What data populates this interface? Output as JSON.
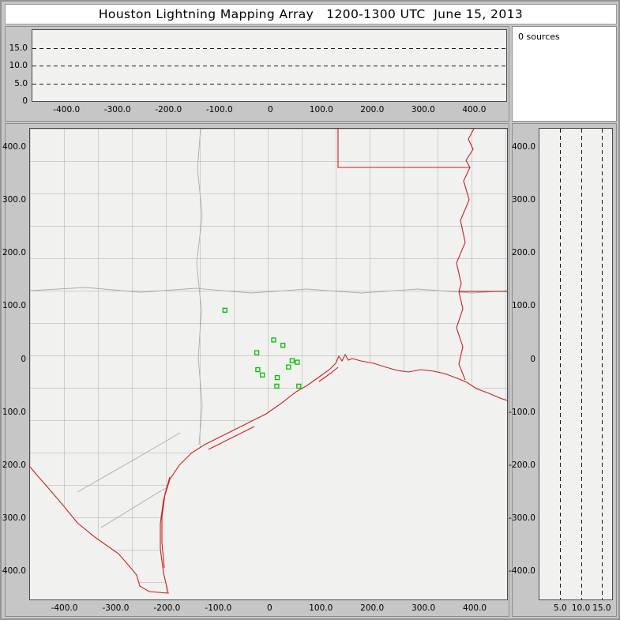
{
  "window": {
    "title": "Houston Lightning Mapping Array   1200-1300 UTC  June 15, 2013"
  },
  "sources_panel": {
    "text": "0 sources"
  },
  "chart_data": {
    "type": "scatter",
    "title": "Houston Lightning Mapping Array 1200-1300 UTC June 15, 2013",
    "source_count": 0,
    "colors": {
      "station": "#00c000",
      "state_border": "#cc2020",
      "county_line": "#ababab",
      "plot_background": "#f1f1f0",
      "window_background": "#c6c6c6"
    },
    "panels": {
      "ew_altitude": {
        "description": "altitude (km) vs east-west distance (km), empty - 0 sources",
        "x_range": [
          -467,
          463
        ],
        "y_range": [
          0,
          20
        ],
        "x_ticks": {
          "values": [
            -400,
            -300,
            -200,
            -100,
            0,
            100,
            200,
            300,
            400
          ],
          "labels": [
            "-400.0",
            "-300.0",
            "-200.0",
            "-100.0",
            "0",
            "100.0",
            "200.0",
            "300.0",
            "400.0"
          ]
        },
        "y_ticks": {
          "values": [
            15,
            10,
            5,
            0
          ],
          "labels": [
            "15.0",
            "10.0",
            "5.0",
            "0"
          ]
        },
        "gridlines_alt_km": [
          5,
          10,
          15
        ],
        "points": []
      },
      "map": {
        "description": "plan view map, distances in km from network center near Houston",
        "x_range": [
          -467,
          463
        ],
        "y_range": [
          -453,
          434
        ],
        "x_ticks": {
          "values": [
            -400,
            -300,
            -200,
            -100,
            0,
            100,
            200,
            300,
            400
          ],
          "labels": [
            "-400.0",
            "-300.0",
            "-200.0",
            "-100.0",
            "0",
            "100.0",
            "200.0",
            "300.0",
            "400.0"
          ]
        },
        "y_ticks": {
          "values": [
            400,
            300,
            200,
            100,
            0,
            -100,
            -200,
            -300,
            -400
          ],
          "labels": [
            "400.0",
            "300.0",
            "200.0",
            "100.0",
            "0",
            "-100.0",
            "-200.0",
            "-300.0",
            "-400.0"
          ]
        },
        "points": []
      },
      "ns_altitude": {
        "description": "north-south distance (km) vs altitude (km), empty - 0 sources",
        "x_range": [
          0,
          17.5
        ],
        "y_range": [
          -453,
          434
        ],
        "x_ticks": {
          "values": [
            5,
            10,
            15
          ],
          "labels": [
            "5.0",
            "10.0",
            "15.0"
          ]
        },
        "y_ticks": {
          "values": [
            400,
            300,
            200,
            100,
            0,
            -100,
            -200,
            -300,
            -400
          ],
          "labels": [
            "400.0",
            "300.0",
            "200.0",
            "100.0",
            "0",
            "-100.0",
            "-200.0",
            "-300.0",
            "-400.0"
          ]
        },
        "gridlines_alt_km": [
          5,
          10,
          15
        ],
        "points": []
      }
    },
    "stations_km": [
      [
        -87,
        92
      ],
      [
        8,
        36
      ],
      [
        26,
        26
      ],
      [
        -25,
        12
      ],
      [
        44,
        -3
      ],
      [
        54,
        -6
      ],
      [
        37,
        -15
      ],
      [
        -23,
        -20
      ],
      [
        -14,
        -30
      ],
      [
        15,
        -35
      ],
      [
        14,
        -51
      ],
      [
        57,
        -51
      ]
    ]
  }
}
